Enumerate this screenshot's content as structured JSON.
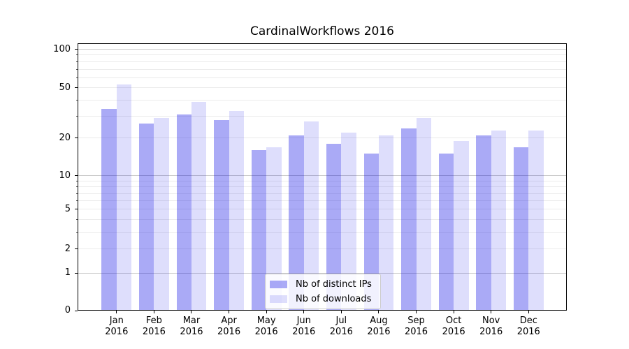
{
  "chart_data": {
    "type": "bar",
    "title": "CardinalWorkflows 2016",
    "categories": [
      "Jan",
      "Feb",
      "Mar",
      "Apr",
      "May",
      "Jun",
      "Jul",
      "Aug",
      "Sep",
      "Oct",
      "Nov",
      "Dec"
    ],
    "category_year": "2016",
    "series": [
      {
        "name": "Nb of distinct IPs",
        "color": "rgba(5,5,230,0.34)",
        "values": [
          34,
          26,
          31,
          28,
          16,
          21,
          18,
          15,
          24,
          15,
          21,
          17
        ]
      },
      {
        "name": "Nb of downloads",
        "color": "rgba(5,5,230,0.135)",
        "values": [
          53,
          29,
          39,
          33,
          17,
          27,
          22,
          21,
          29,
          19,
          23,
          23
        ]
      }
    ],
    "yscale": "log1p",
    "ylim": [
      0,
      111
    ],
    "yticks": [
      0,
      1,
      2,
      5,
      10,
      20,
      50,
      100
    ],
    "minor_yticks": [
      3,
      4,
      6,
      7,
      8,
      9,
      30,
      40,
      60,
      70,
      80,
      90
    ],
    "grid": true,
    "legend_position": "lower center",
    "colors": {
      "major_grid": "#c9c9c9",
      "minor_grid": "#ebebeb",
      "spine": "#000000",
      "background": "#ffffff"
    }
  }
}
